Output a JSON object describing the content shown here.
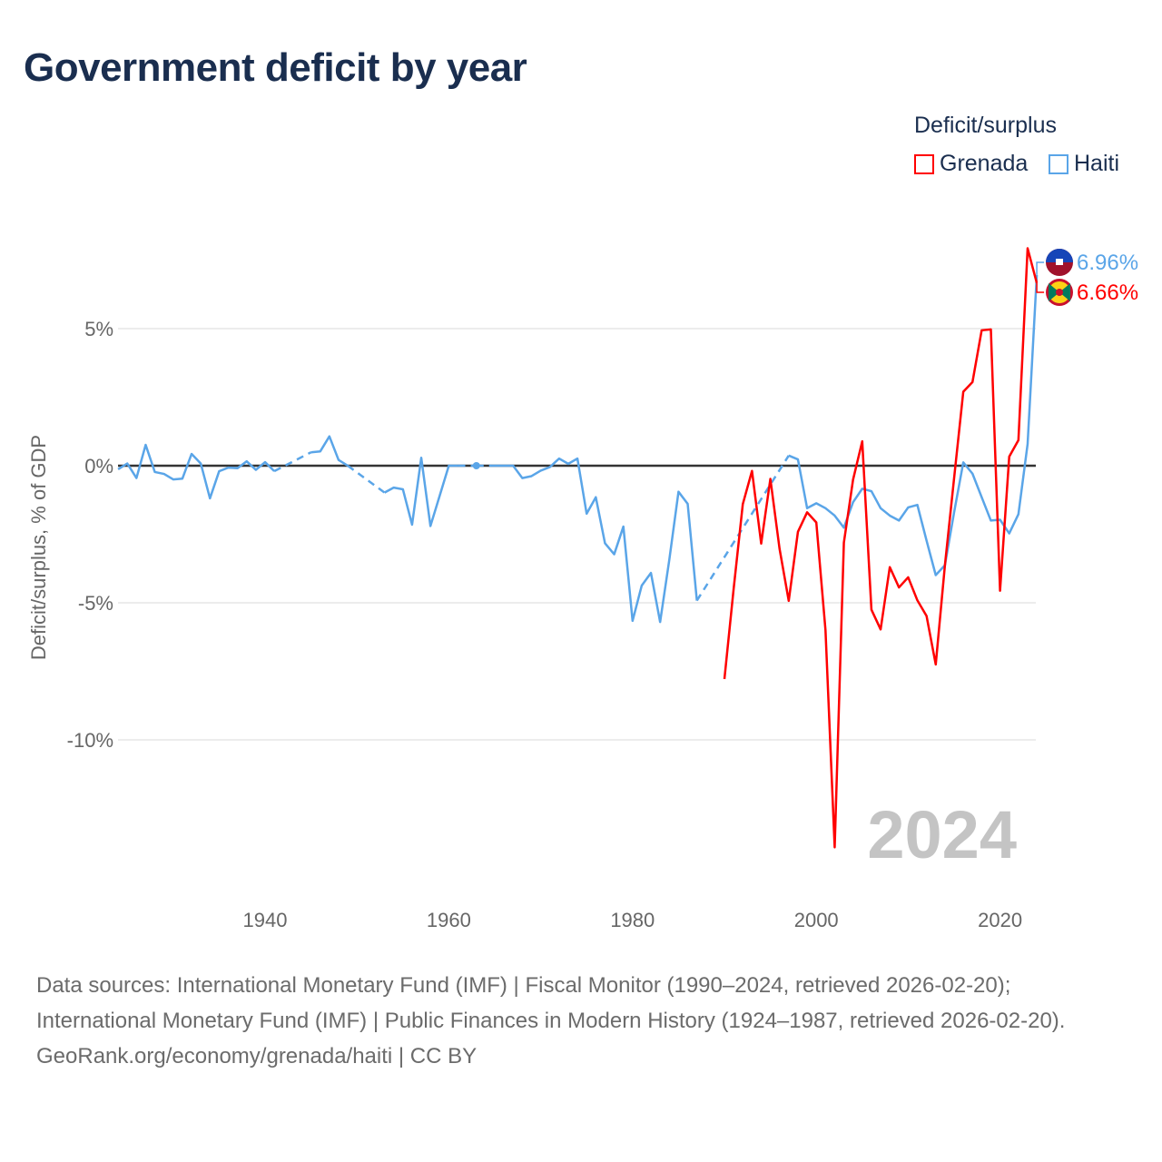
{
  "chart_data": {
    "type": "line",
    "title": "Government deficit by year",
    "ylabel": "Deficit/surplus, % of GDP",
    "xlabel": "",
    "xlim": [
      1924,
      2024
    ],
    "ylim": [
      -15,
      8.5
    ],
    "x_ticks": [
      1940,
      1960,
      1980,
      2000,
      2020
    ],
    "y_ticks": [
      {
        "value": 5,
        "label": "5%"
      },
      {
        "value": 0,
        "label": "0%"
      },
      {
        "value": -5,
        "label": "-5%"
      },
      {
        "value": -10,
        "label": "-10%"
      }
    ],
    "legend": {
      "title": "Deficit/surplus",
      "position": "top-right"
    },
    "current_year_label": "2024",
    "series": [
      {
        "name": "Grenada",
        "color": "#ff0000",
        "end_label": "6.66%",
        "flag": "grenada-flag",
        "start_year": 1990,
        "values": [
          -7.78,
          -4.5,
          -1.4,
          -0.19,
          -2.84,
          -0.48,
          -3.03,
          -4.93,
          -2.41,
          -1.7,
          -2.07,
          -6.0,
          -13.92,
          -2.81,
          -0.51,
          0.89,
          -5.25,
          -5.97,
          -3.7,
          -4.44,
          -4.07,
          -4.91,
          -5.48,
          -7.25,
          -3.63,
          -0.45,
          2.7,
          3.05,
          4.94,
          4.97,
          -4.56,
          0.33,
          0.93,
          7.93,
          6.66
        ]
      },
      {
        "name": "Haiti",
        "color": "#5aa5e8",
        "end_label": "6.96%",
        "flag": "haiti-flag",
        "start_year": 1924,
        "values": [
          -0.13,
          0.08,
          -0.45,
          0.76,
          -0.23,
          -0.3,
          -0.5,
          -0.47,
          0.43,
          0.08,
          -1.19,
          -0.2,
          -0.07,
          -0.09,
          0.16,
          -0.15,
          0.13,
          -0.2,
          null,
          null,
          null,
          0.49,
          0.52,
          1.07,
          0.21,
          0.0,
          null,
          null,
          null,
          -0.98,
          -0.8,
          -0.86,
          -2.15,
          0.29,
          -2.2,
          -1.1,
          0.0,
          0.0,
          null,
          0.0,
          null,
          0.0,
          0.0,
          0.0,
          -0.45,
          -0.38,
          -0.18,
          -0.05,
          0.26,
          0.07,
          0.26,
          -1.75,
          -1.15,
          -2.83,
          -3.23,
          -2.22,
          -5.66,
          -4.37,
          -3.91,
          -5.7,
          -3.43,
          -0.95,
          -1.39,
          -4.92,
          null,
          null,
          null,
          null,
          null,
          null,
          null,
          null,
          null,
          0.37,
          0.23,
          -1.55,
          -1.37,
          -1.55,
          -1.82,
          -2.26,
          -1.33,
          -0.84,
          -0.93,
          -1.55,
          -1.82,
          -2.0,
          -1.52,
          -1.43,
          -2.73,
          -3.99,
          -3.63,
          -1.7,
          0.12,
          -0.29,
          -1.15,
          -2.0,
          -1.97,
          -2.47,
          -1.77,
          0.79,
          6.96
        ]
      }
    ]
  },
  "footer": {
    "sources": "Data sources: International Monetary Fund (IMF) | Fiscal Monitor (1990–2024, retrieved 2026-02-20); International Monetary Fund (IMF) | Public Finances in Modern History (1924–1987, retrieved 2026-02-20).",
    "credit": "GeoRank.org/economy/grenada/haiti | CC BY"
  }
}
